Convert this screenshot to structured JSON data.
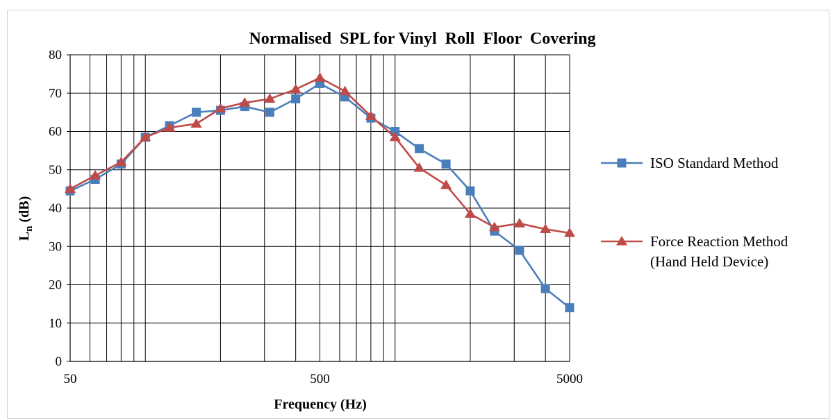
{
  "chart_data": {
    "type": "line",
    "title": "Normalised  SPL for Vinyl  Roll  Floor  Covering",
    "xlabel": "Frequency (Hz)",
    "ylabel_main": "L",
    "ylabel_sub": "n",
    "ylabel_rest": " (dB)",
    "x_scale": "log",
    "xlim": [
      50,
      5000
    ],
    "ylim": [
      0,
      80
    ],
    "y_ticks": [
      0,
      10,
      20,
      30,
      40,
      50,
      60,
      70,
      80
    ],
    "x_tick_labels": [
      {
        "value": 50,
        "label": "50"
      },
      {
        "value": 500,
        "label": "500"
      },
      {
        "value": 5000,
        "label": "5000"
      }
    ],
    "grid": true,
    "legend_position": "right",
    "x": [
      50,
      63,
      80,
      100,
      125,
      160,
      200,
      250,
      315,
      400,
      500,
      630,
      800,
      1000,
      1250,
      1600,
      2000,
      2500,
      3150,
      4000,
      5000
    ],
    "series": [
      {
        "name": "ISO Standard Method",
        "color": "#4a7ebb",
        "marker": "square",
        "values": [
          44.5,
          47.5,
          51.5,
          58.5,
          61.5,
          65.0,
          65.5,
          66.5,
          65.0,
          68.5,
          72.5,
          69.0,
          63.5,
          60.0,
          55.5,
          51.5,
          44.5,
          34.0,
          29.0,
          19.0,
          14.0
        ]
      },
      {
        "name": "Force Reaction Method\n(Hand Held Device)",
        "color": "#be4b48",
        "marker": "triangle",
        "values": [
          45.0,
          48.5,
          52.0,
          58.5,
          61.0,
          62.0,
          66.0,
          67.5,
          68.5,
          71.0,
          74.0,
          70.5,
          64.0,
          58.5,
          50.5,
          46.0,
          38.5,
          35.0,
          36.0,
          34.5,
          33.5
        ]
      }
    ]
  }
}
